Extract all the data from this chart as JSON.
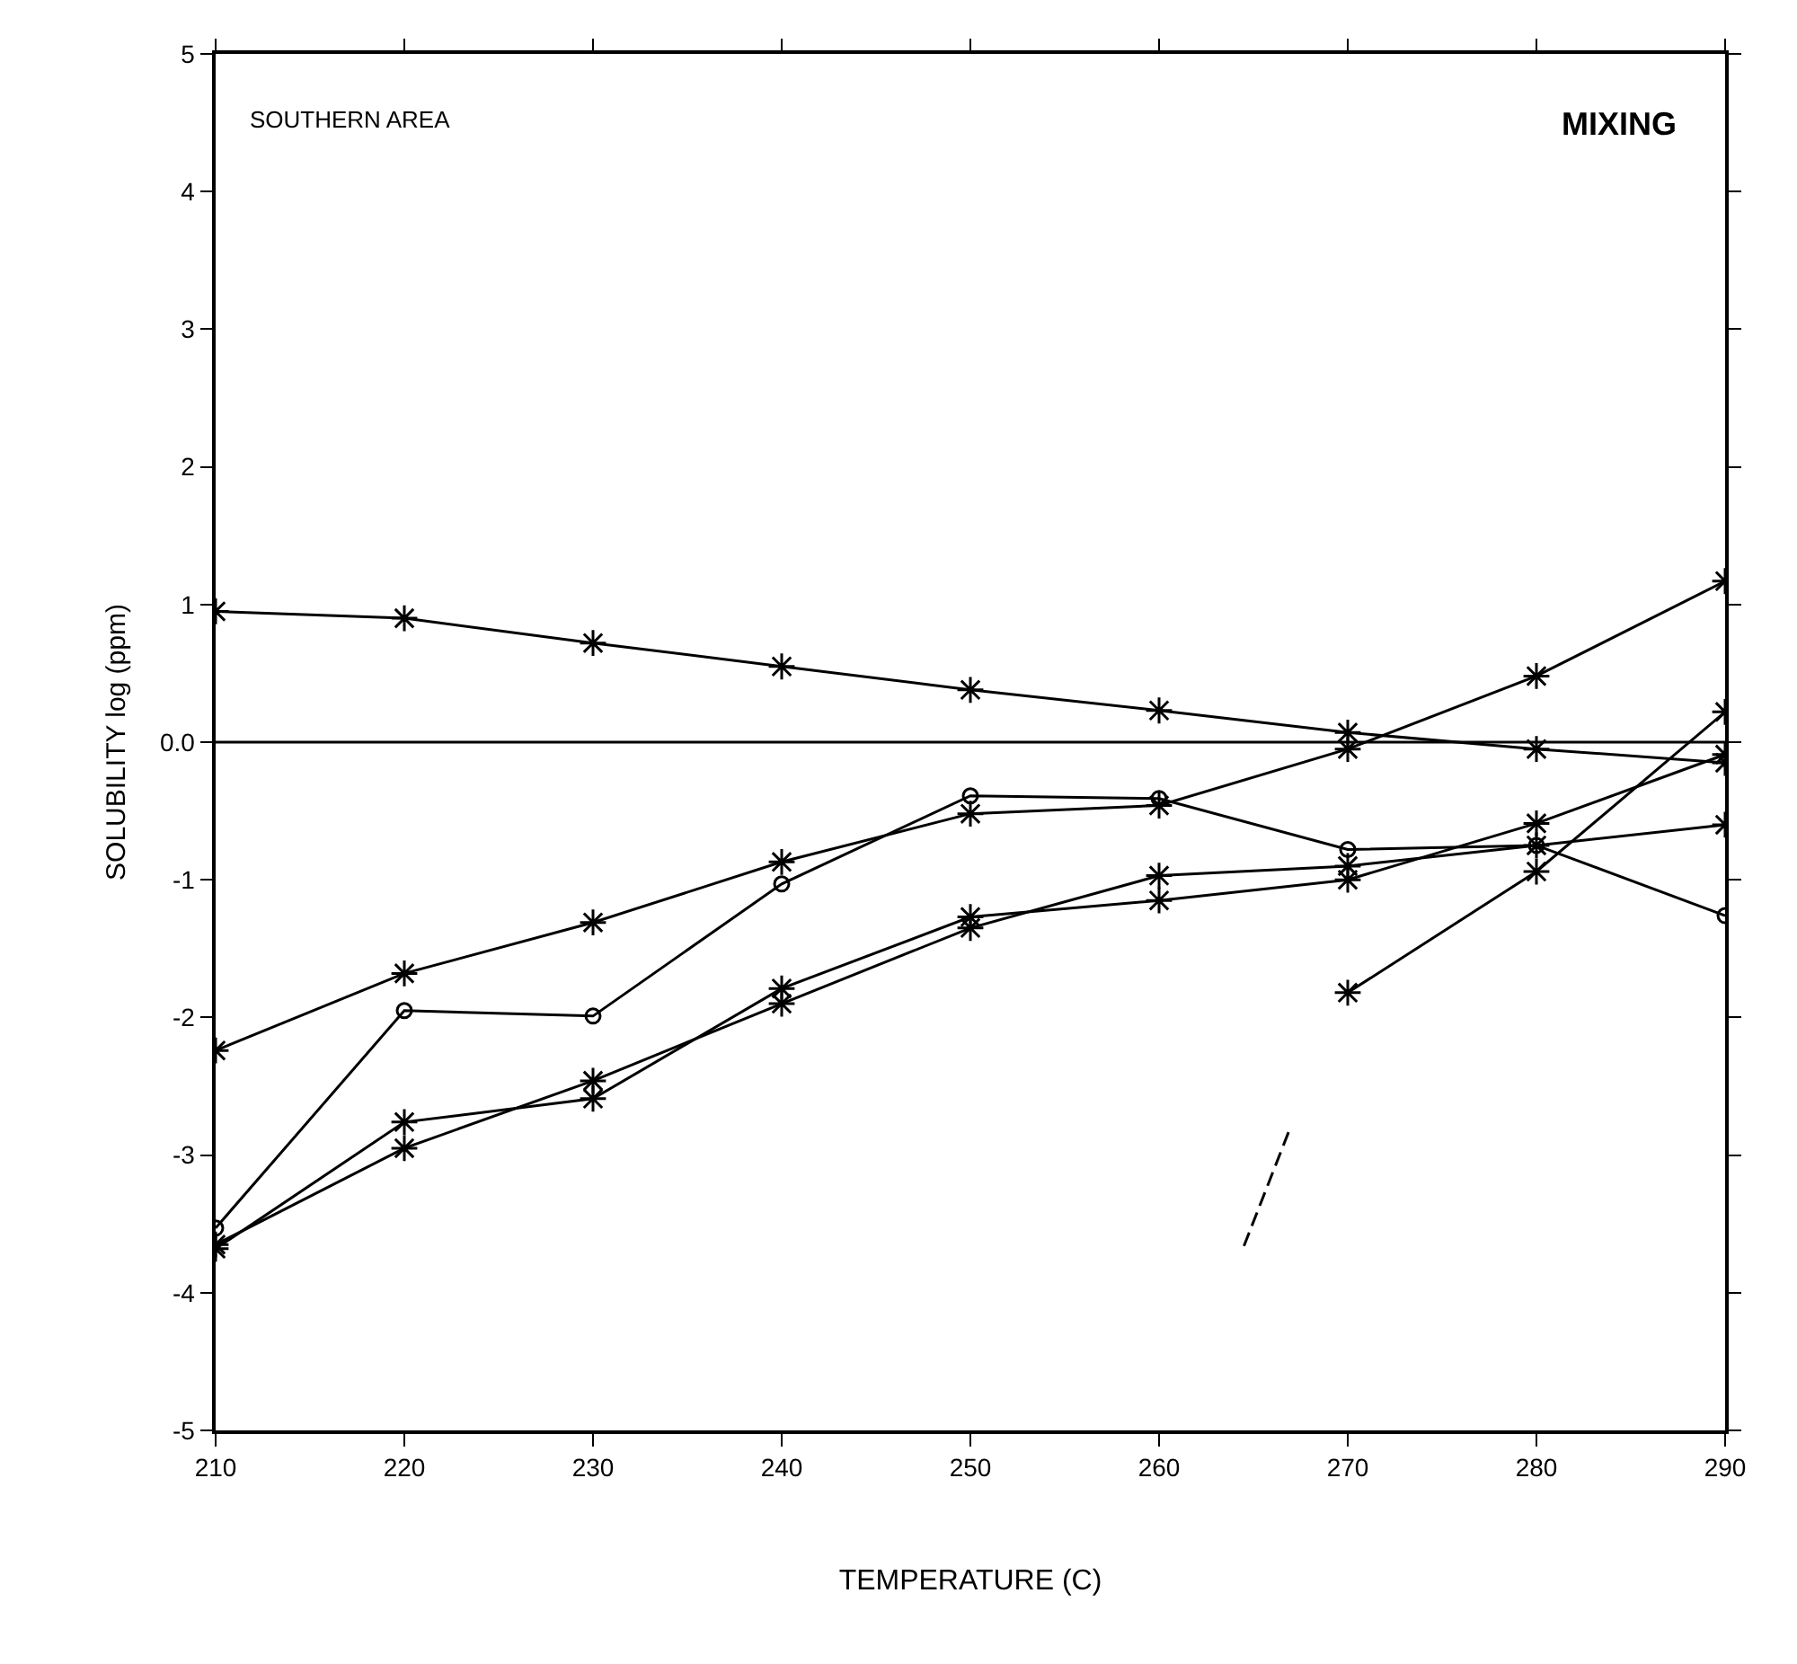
{
  "chart_data": {
    "type": "line",
    "xlabel": "TEMPERATURE (C)",
    "ylabel": "SOLUBILITY log (ppm)",
    "annotations": [
      "SOUTHERN AREA",
      "MIXING"
    ],
    "x": [
      210,
      220,
      230,
      240,
      250,
      260,
      270,
      280,
      290
    ],
    "series": [
      {
        "color": "#000000",
        "marker": "cross",
        "values": [
          0.95,
          0.9,
          0.72,
          0.55,
          0.38,
          0.23,
          0.07,
          -0.05,
          -0.15
        ]
      },
      {
        "color": "#000000",
        "marker": "cross",
        "values": [
          -2.24,
          -1.68,
          -1.31,
          -0.87,
          -0.52,
          -0.46,
          -0.05,
          0.48,
          1.17
        ]
      },
      {
        "color": "#000000",
        "marker": "circle",
        "values": [
          -3.53,
          -1.95,
          -1.99,
          -1.03,
          -0.39,
          -0.41,
          -0.78,
          -0.75,
          -1.26
        ]
      },
      {
        "color": "#000000",
        "marker": "cross",
        "values": [
          -3.68,
          -2.76,
          -2.59,
          -1.79,
          -1.27,
          -1.15,
          -1.0,
          -0.59,
          -0.09
        ]
      },
      {
        "color": "#000000",
        "marker": "cross",
        "values": [
          -3.65,
          -2.95,
          -2.46,
          -1.9,
          -1.35,
          -0.97,
          -0.9,
          -0.75,
          -0.6
        ]
      },
      {
        "color": "#000000",
        "marker": "cross",
        "x": [
          270,
          280,
          290
        ],
        "values": [
          -1.82,
          -0.94,
          0.22
        ]
      },
      {
        "color": "#000000",
        "marker": "none",
        "line_style": "dashed",
        "x": [
          264.5,
          266.9
        ],
        "values": [
          -3.66,
          -2.82
        ]
      }
    ],
    "ref_lines": [
      {
        "axis": "y",
        "value": 0,
        "color": "#000000"
      }
    ],
    "xlim": [
      210,
      290
    ],
    "ylim": [
      -5,
      5
    ],
    "xticks": [
      210,
      220,
      230,
      240,
      250,
      260,
      270,
      280,
      290
    ],
    "yticks": [
      -5,
      -4,
      -3,
      -2,
      -1,
      {
        "value": 0,
        "label": "0.0"
      },
      1,
      2,
      3,
      4,
      5
    ]
  }
}
